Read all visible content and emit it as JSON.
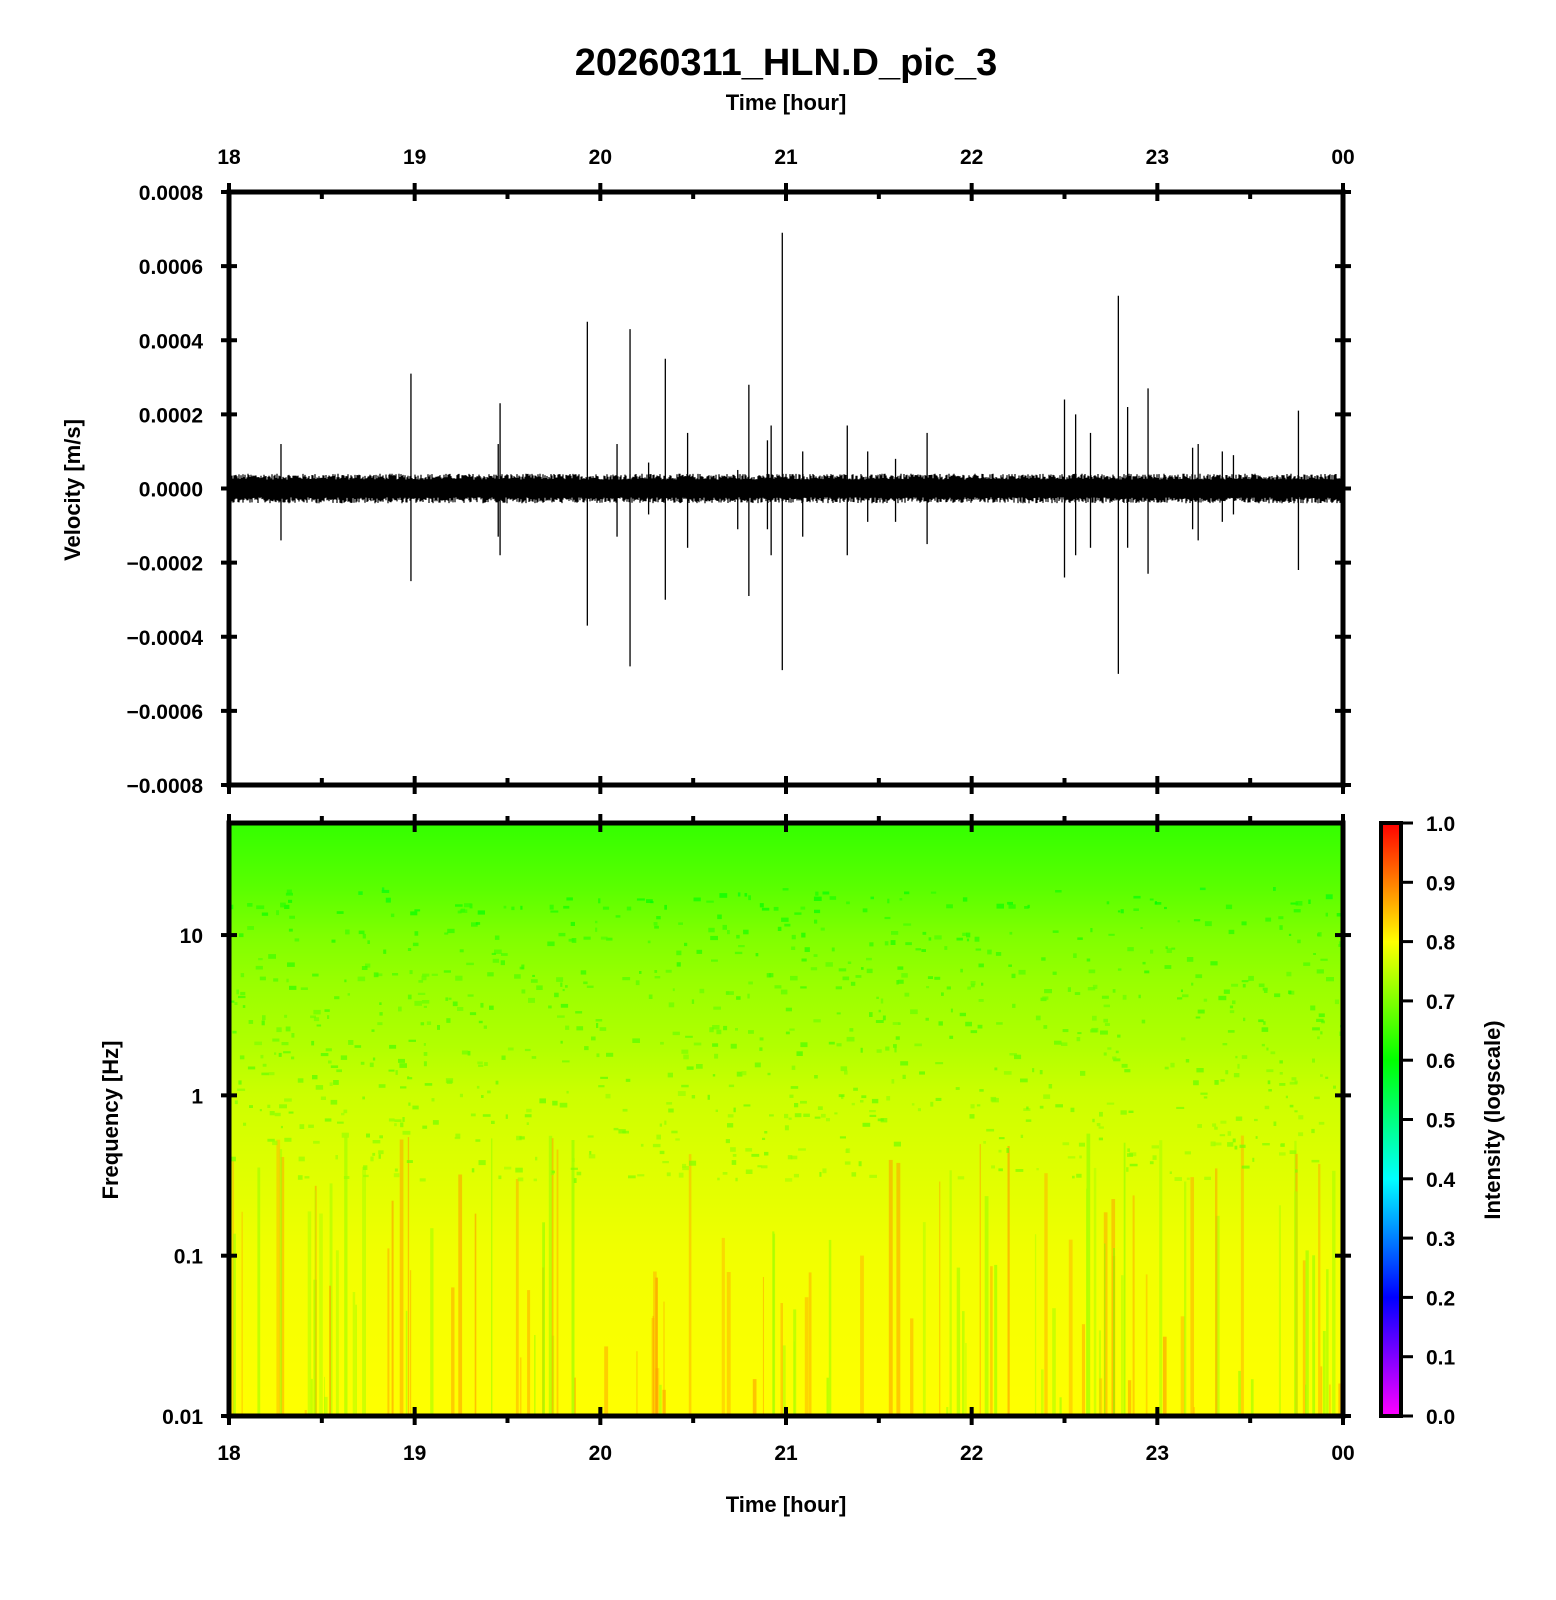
{
  "title": "20260311_HLN.D_pic_3",
  "chart_data": [
    {
      "type": "line",
      "panel": "waveform",
      "xlabel": "Time [hour]",
      "ylabel": "Velocity [m/s]",
      "x_ticks": [
        "18",
        "19",
        "20",
        "21",
        "22",
        "23",
        "00"
      ],
      "x_range": [
        18,
        24
      ],
      "y_ticks": [
        "0.0008",
        "0.0006",
        "0.0004",
        "0.0002",
        "0.0000",
        "−0.0002",
        "−0.0004",
        "−0.0006",
        "−0.0008"
      ],
      "ylim": [
        -0.0008,
        0.0008
      ],
      "grid": false,
      "noise_band": [
        -4e-05,
        4e-05
      ],
      "color": "#000000",
      "spikes": [
        {
          "t": 18.28,
          "max": 0.00012,
          "min": -0.00014
        },
        {
          "t": 18.98,
          "max": 0.00031,
          "min": -0.00025
        },
        {
          "t": 19.45,
          "max": 0.00012,
          "min": -0.00013
        },
        {
          "t": 19.46,
          "max": 0.00023,
          "min": -0.00018
        },
        {
          "t": 19.93,
          "max": 0.00045,
          "min": -0.00037
        },
        {
          "t": 20.09,
          "max": 0.00012,
          "min": -0.00013
        },
        {
          "t": 20.16,
          "max": 0.00043,
          "min": -0.00048
        },
        {
          "t": 20.26,
          "max": 7e-05,
          "min": -7e-05
        },
        {
          "t": 20.35,
          "max": 0.00035,
          "min": -0.0003
        },
        {
          "t": 20.47,
          "max": 0.00015,
          "min": -0.00016
        },
        {
          "t": 20.74,
          "max": 5e-05,
          "min": -0.00011
        },
        {
          "t": 20.8,
          "max": 0.00028,
          "min": -0.00029
        },
        {
          "t": 20.9,
          "max": 0.00013,
          "min": -0.00011
        },
        {
          "t": 20.92,
          "max": 0.00017,
          "min": -0.00018
        },
        {
          "t": 20.98,
          "max": 0.00069,
          "min": -0.00049
        },
        {
          "t": 21.09,
          "max": 0.0001,
          "min": -0.00013
        },
        {
          "t": 21.33,
          "max": 0.00017,
          "min": -0.00018
        },
        {
          "t": 21.44,
          "max": 0.0001,
          "min": -9e-05
        },
        {
          "t": 21.59,
          "max": 8e-05,
          "min": -9e-05
        },
        {
          "t": 21.76,
          "max": 0.00015,
          "min": -0.00015
        },
        {
          "t": 22.5,
          "max": 0.00024,
          "min": -0.00024
        },
        {
          "t": 22.56,
          "max": 0.0002,
          "min": -0.00018
        },
        {
          "t": 22.64,
          "max": 0.00015,
          "min": -0.00016
        },
        {
          "t": 22.79,
          "max": 0.00052,
          "min": -0.0005
        },
        {
          "t": 22.84,
          "max": 0.00022,
          "min": -0.00016
        },
        {
          "t": 22.95,
          "max": 0.00027,
          "min": -0.00023
        },
        {
          "t": 23.19,
          "max": 0.00011,
          "min": -0.00011
        },
        {
          "t": 23.22,
          "max": 0.00012,
          "min": -0.00014
        },
        {
          "t": 23.35,
          "max": 0.0001,
          "min": -9e-05
        },
        {
          "t": 23.41,
          "max": 9e-05,
          "min": -7e-05
        },
        {
          "t": 23.76,
          "max": 0.00021,
          "min": -0.00022
        }
      ]
    },
    {
      "type": "heatmap",
      "panel": "spectrogram",
      "xlabel": "Time [hour]",
      "ylabel": "Frequency [Hz]",
      "x_ticks": [
        "18",
        "19",
        "20",
        "21",
        "22",
        "23",
        "00"
      ],
      "x_range": [
        18,
        24
      ],
      "y_ticks": [
        "10",
        "1",
        "0.1",
        "0.01"
      ],
      "y_scale": "log",
      "ylim": [
        0.01,
        50
      ],
      "colorbar": {
        "label": "Intensity (logscale)",
        "ticks": [
          "1.0",
          "0.9",
          "0.8",
          "0.7",
          "0.6",
          "0.5",
          "0.4",
          "0.3",
          "0.2",
          "0.1",
          "0.0"
        ],
        "range": [
          0,
          1
        ],
        "stops": [
          {
            "v": 0.0,
            "color": "#ff00ff"
          },
          {
            "v": 0.2,
            "color": "#0000ff"
          },
          {
            "v": 0.4,
            "color": "#00ffff"
          },
          {
            "v": 0.6,
            "color": "#00ff00"
          },
          {
            "v": 0.8,
            "color": "#ffff00"
          },
          {
            "v": 1.0,
            "color": "#ff0000"
          }
        ]
      },
      "intensity_profile": [
        {
          "f": 50,
          "i": 0.64
        },
        {
          "f": 20,
          "i": 0.67
        },
        {
          "f": 10,
          "i": 0.7
        },
        {
          "f": 5,
          "i": 0.72
        },
        {
          "f": 2,
          "i": 0.74
        },
        {
          "f": 1,
          "i": 0.76
        },
        {
          "f": 0.5,
          "i": 0.77
        },
        {
          "f": 0.1,
          "i": 0.79
        },
        {
          "f": 0.01,
          "i": 0.8
        }
      ]
    }
  ]
}
